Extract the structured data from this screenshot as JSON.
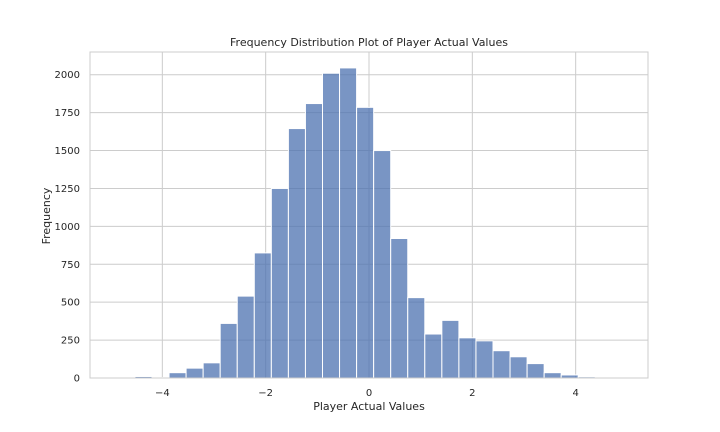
{
  "chart_data": {
    "type": "histogram",
    "title": "Frequency Distribution Plot of Player Actual Values",
    "xlabel": "Player Actual Values",
    "ylabel": "Frequency",
    "xlim": [
      -5.4,
      5.4
    ],
    "ylim": [
      0,
      2150
    ],
    "xticks": [
      -4,
      -2,
      0,
      2,
      4
    ],
    "xtick_labels": [
      "−4",
      "−2",
      "0",
      "2",
      "4"
    ],
    "yticks": [
      0,
      250,
      500,
      750,
      1000,
      1250,
      1500,
      1750,
      2000
    ],
    "ytick_labels": [
      "0",
      "250",
      "500",
      "750",
      "1000",
      "1250",
      "1500",
      "1750",
      "2000"
    ],
    "grid": true,
    "bar_color": "#4c72b0",
    "bar_alpha": 0.75,
    "bin_edges": [
      -5.19,
      -4.86,
      -4.53,
      -4.2,
      -3.87,
      -3.54,
      -3.21,
      -2.88,
      -2.55,
      -2.22,
      -1.89,
      -1.56,
      -1.23,
      -0.9,
      -0.57,
      -0.24,
      0.09,
      0.42,
      0.75,
      1.08,
      1.41,
      1.74,
      2.07,
      2.4,
      2.73,
      3.06,
      3.39,
      3.72,
      4.05,
      4.38,
      4.71,
      5.04
    ],
    "values": [
      2,
      3,
      10,
      3,
      35,
      65,
      100,
      360,
      540,
      825,
      1250,
      1645,
      1810,
      2010,
      2045,
      1785,
      1500,
      920,
      530,
      290,
      380,
      265,
      245,
      180,
      140,
      95,
      35,
      20,
      8,
      2,
      1
    ]
  }
}
